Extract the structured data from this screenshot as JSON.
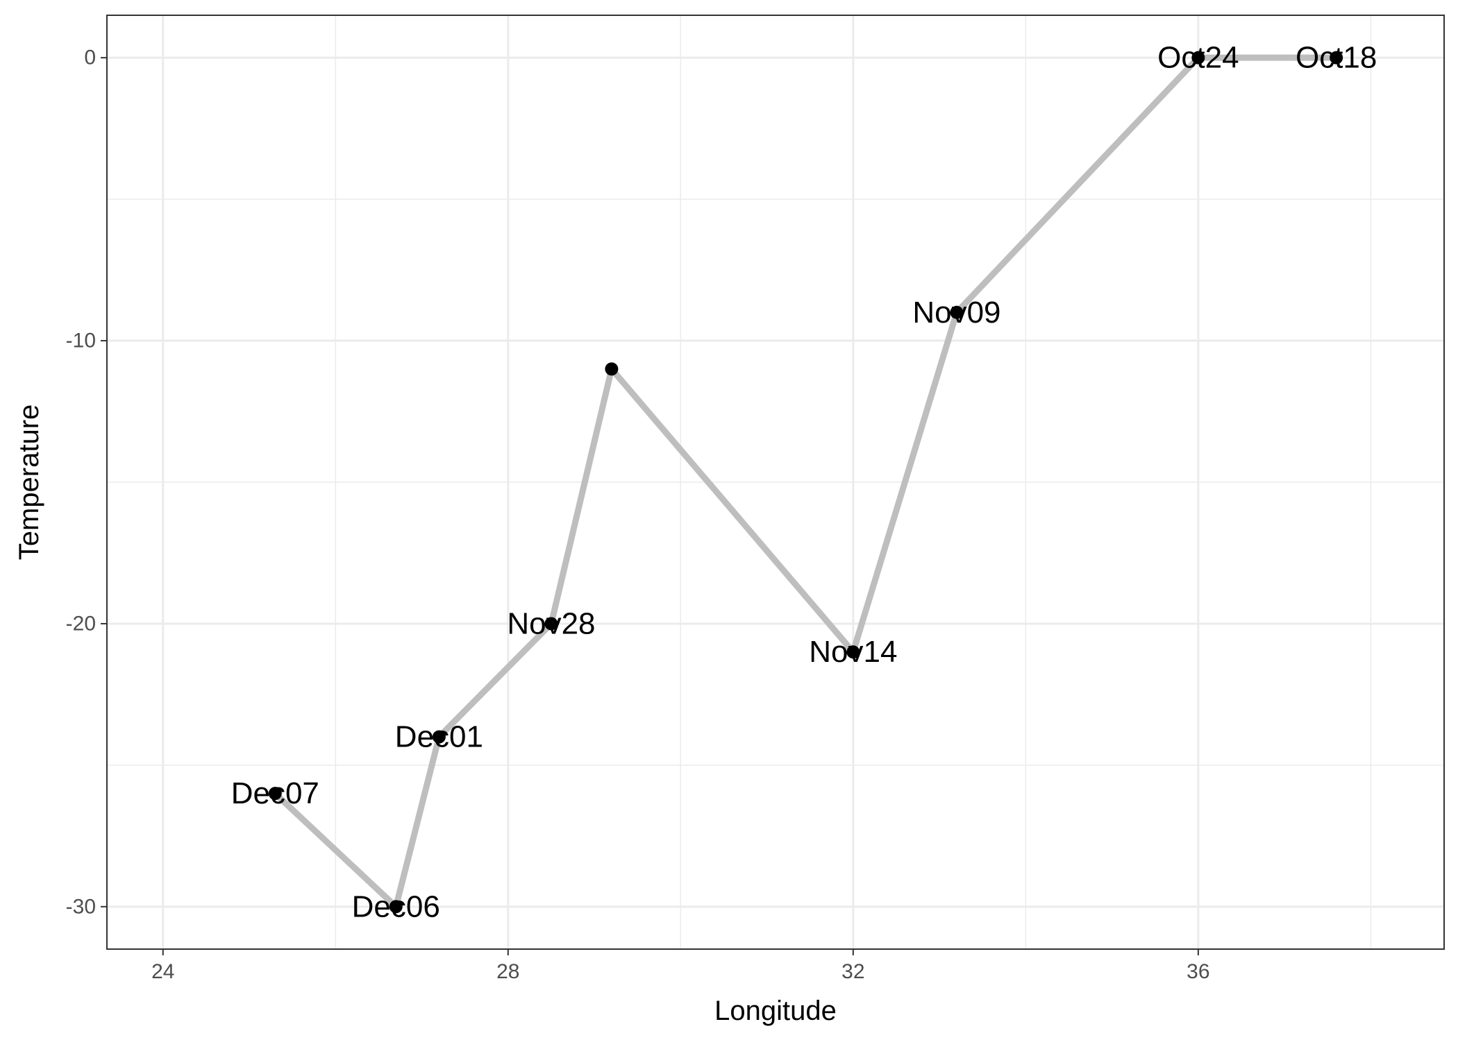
{
  "chart_data": {
    "type": "line",
    "title": "",
    "xlabel": "Longitude",
    "ylabel": "Temperature",
    "xlim": [
      23.35,
      38.85
    ],
    "ylim": [
      -31.5,
      1.5
    ],
    "x_ticks": [
      24,
      28,
      32,
      36
    ],
    "y_ticks": [
      0,
      -10,
      -20,
      -30
    ],
    "x_tick_labels": [
      "24",
      "28",
      "32",
      "36"
    ],
    "y_tick_labels": [
      "0",
      "-10",
      "-20",
      "-30"
    ],
    "grid": true,
    "legend": "none",
    "line_color": "#bebebe",
    "point_color": "#000000",
    "series": [
      {
        "points": [
          {
            "x": 37.6,
            "y": 0,
            "label": "Oct18"
          },
          {
            "x": 36.0,
            "y": 0,
            "label": "Oct24"
          },
          {
            "x": 33.2,
            "y": -9,
            "label": "Nov09"
          },
          {
            "x": 32.0,
            "y": -21,
            "label": "Nov14"
          },
          {
            "x": 29.2,
            "y": -11,
            "label": ""
          },
          {
            "x": 28.5,
            "y": -20,
            "label": "Nov28"
          },
          {
            "x": 27.2,
            "y": -24,
            "label": "Dec01"
          },
          {
            "x": 26.7,
            "y": -30,
            "label": "Dec06"
          },
          {
            "x": 25.3,
            "y": -26,
            "label": "Dec07"
          }
        ]
      }
    ]
  }
}
